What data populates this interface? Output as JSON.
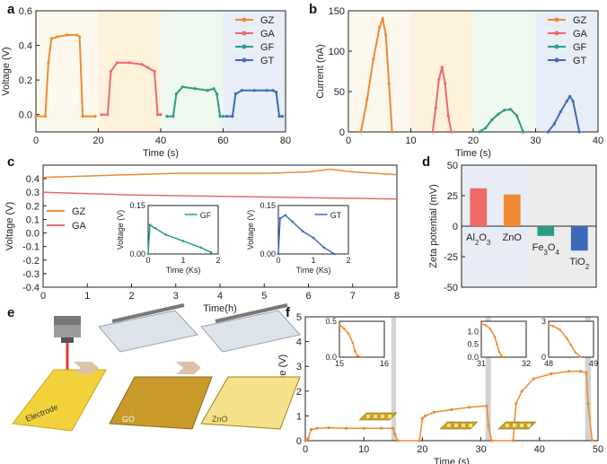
{
  "colors": {
    "orange": "#f08a30",
    "red": "#ea6b6b",
    "green": "#2c9c86",
    "blue": "#3c6ab9",
    "axis": "#222222"
  },
  "panel_labels": {
    "a": "a",
    "b": "b",
    "c": "c",
    "d": "d",
    "e": "e",
    "f": "f"
  },
  "chart_data": [
    {
      "id": "a",
      "type": "line",
      "xlabel": "Time (s)",
      "ylabel": "Voltage (V)",
      "xlim": [
        0,
        80
      ],
      "ylim": [
        -0.1,
        0.6
      ],
      "xticks": [
        0,
        20,
        40,
        60,
        80
      ],
      "yticks": [
        0.0,
        0.2,
        0.4,
        0.6
      ],
      "ytick_labels": [
        "0.0",
        "0.2",
        "0.4",
        "0.6"
      ],
      "legend": [
        "GZ",
        "GA",
        "GF",
        "GT"
      ],
      "background_bands": [
        {
          "from": 0,
          "to": 20,
          "color": "#fdf8ee"
        },
        {
          "from": 20,
          "to": 40,
          "color": "#fdf1dc"
        },
        {
          "from": 40,
          "to": 60,
          "color": "#eef8ee"
        },
        {
          "from": 60,
          "to": 80,
          "color": "#e8eef8"
        }
      ],
      "series": [
        {
          "name": "GZ",
          "color": "#f08a30",
          "x": [
            0,
            3,
            4,
            5,
            7,
            10,
            13,
            14,
            15,
            19
          ],
          "y": [
            -0.01,
            -0.01,
            0.3,
            0.44,
            0.45,
            0.46,
            0.46,
            0.45,
            -0.01,
            -0.01
          ]
        },
        {
          "name": "GA",
          "color": "#ea6b6b",
          "x": [
            21,
            23,
            24,
            26,
            30,
            34,
            36,
            38,
            39,
            40
          ],
          "y": [
            0.0,
            0.0,
            0.25,
            0.3,
            0.3,
            0.29,
            0.27,
            0.25,
            0.0,
            0.0
          ]
        },
        {
          "name": "GF",
          "color": "#2c9c86",
          "x": [
            42,
            44,
            45,
            47,
            51,
            55,
            57,
            58,
            59,
            60
          ],
          "y": [
            -0.01,
            -0.01,
            0.12,
            0.16,
            0.15,
            0.14,
            0.15,
            0.12,
            -0.01,
            -0.01
          ]
        },
        {
          "name": "GT",
          "color": "#3c6ab9",
          "x": [
            61,
            63,
            64,
            66,
            70,
            74,
            76,
            77,
            78,
            79
          ],
          "y": [
            -0.01,
            -0.01,
            0.12,
            0.14,
            0.14,
            0.14,
            0.14,
            0.13,
            -0.01,
            -0.01
          ]
        }
      ]
    },
    {
      "id": "b",
      "type": "line",
      "xlabel": "Time (s)",
      "ylabel": "Current (nA)",
      "xlim": [
        0,
        40
      ],
      "ylim": [
        0,
        150
      ],
      "xticks": [
        0,
        10,
        20,
        30,
        40
      ],
      "yticks": [
        0,
        50,
        100,
        150
      ],
      "legend": [
        "GZ",
        "GA",
        "GF",
        "GT"
      ],
      "background_bands": [
        {
          "from": 0,
          "to": 10,
          "color": "#fdf8ee"
        },
        {
          "from": 10,
          "to": 20,
          "color": "#fdf1dc"
        },
        {
          "from": 20,
          "to": 30,
          "color": "#eef8ee"
        },
        {
          "from": 30,
          "to": 40,
          "color": "#e8eef8"
        }
      ],
      "series": [
        {
          "name": "GZ",
          "color": "#f08a30",
          "x": [
            2,
            3,
            4,
            5,
            5.5,
            6,
            6.5,
            7
          ],
          "y": [
            0,
            40,
            90,
            130,
            140,
            120,
            60,
            0
          ]
        },
        {
          "name": "GA",
          "color": "#ea6b6b",
          "x": [
            13.5,
            14,
            14.5,
            15,
            15.5,
            16,
            16.5
          ],
          "y": [
            0,
            30,
            65,
            80,
            60,
            20,
            0
          ]
        },
        {
          "name": "GF",
          "color": "#2c9c86",
          "x": [
            21,
            22,
            23,
            24,
            25,
            26,
            27,
            28
          ],
          "y": [
            0,
            5,
            15,
            22,
            27,
            28,
            20,
            0
          ]
        },
        {
          "name": "GT",
          "color": "#3c6ab9",
          "x": [
            32,
            33,
            34,
            35,
            35.5,
            36,
            37
          ],
          "y": [
            0,
            10,
            25,
            38,
            44,
            38,
            0
          ]
        }
      ]
    },
    {
      "id": "c",
      "type": "line",
      "xlabel": "Time(h)",
      "ylabel": "Voltage (V)",
      "xlim": [
        0,
        8
      ],
      "ylim": [
        -0.4,
        0.5
      ],
      "xticks": [
        0,
        1,
        2,
        3,
        4,
        5,
        6,
        7,
        8
      ],
      "yticks": [
        -0.4,
        -0.3,
        -0.2,
        -0.1,
        0.0,
        0.1,
        0.2,
        0.3,
        0.4
      ],
      "ytick_labels": [
        "-0.4",
        "-0.3",
        "-0.2",
        "-0.1",
        "0.0",
        "0.1",
        "0.2",
        "0.3",
        "0.4"
      ],
      "legend": [
        "GZ",
        "GA"
      ],
      "series": [
        {
          "name": "GZ",
          "color": "#f08a30",
          "x": [
            0,
            1,
            2,
            3,
            4,
            5,
            6,
            6.5,
            7,
            7.5,
            8
          ],
          "y": [
            0.41,
            0.42,
            0.43,
            0.44,
            0.44,
            0.44,
            0.45,
            0.47,
            0.45,
            0.44,
            0.43
          ]
        },
        {
          "name": "GA",
          "color": "#ea6b6b",
          "x": [
            0,
            1,
            2,
            3,
            4,
            5,
            6,
            7,
            8
          ],
          "y": [
            0.3,
            0.29,
            0.28,
            0.275,
            0.27,
            0.265,
            0.26,
            0.255,
            0.25
          ]
        }
      ],
      "insets": [
        {
          "name": "GF",
          "color": "#2c9c86",
          "xlabel": "Time (Ks)",
          "ylabel": "Voltage (V)",
          "xlim": [
            0,
            2
          ],
          "ylim": [
            0,
            0.15
          ],
          "xticks": [
            0,
            1,
            2
          ],
          "yticks": [
            0.0,
            0.15
          ],
          "ytick_labels": [
            "0.00",
            "0.15"
          ],
          "x": [
            0,
            0.05,
            0.2,
            0.5,
            1.0,
            1.5,
            1.8
          ],
          "y": [
            0.0,
            0.09,
            0.08,
            0.06,
            0.04,
            0.02,
            0.005
          ]
        },
        {
          "name": "GT",
          "color": "#3c6ab9",
          "xlabel": "Time (Ks)",
          "ylabel": "Voltage (V)",
          "xlim": [
            0,
            2
          ],
          "ylim": [
            0,
            0.15
          ],
          "xticks": [
            0,
            1,
            2
          ],
          "yticks": [
            0.0,
            0.15
          ],
          "ytick_labels": [
            "0.00",
            "0.15"
          ],
          "x": [
            0,
            0.05,
            0.2,
            0.4,
            0.7,
            1.0,
            1.3,
            1.6
          ],
          "y": [
            0.0,
            0.11,
            0.12,
            0.1,
            0.07,
            0.05,
            0.02,
            0.0
          ]
        }
      ]
    },
    {
      "id": "d",
      "type": "bar",
      "ylabel": "Zeta potential (mV)",
      "ylim": [
        -50,
        50
      ],
      "yticks": [
        -50,
        -25,
        0,
        25,
        50
      ],
      "categories": [
        "Al2O3",
        "ZnO",
        "Fe3O4",
        "TiO2"
      ],
      "values": [
        31,
        26,
        -8,
        -20
      ],
      "colors": [
        "#f06a65",
        "#f08a30",
        "#2c9c86",
        "#3c6ab9"
      ]
    },
    {
      "id": "f",
      "type": "line",
      "xlabel": "Time (s)",
      "ylabel": "Voltage (V)",
      "xlim": [
        0,
        50
      ],
      "ylim": [
        0,
        5
      ],
      "xticks": [
        0,
        10,
        20,
        30,
        40,
        50
      ],
      "yticks": [
        0,
        1,
        2,
        3,
        4,
        5
      ],
      "gray_bands": [
        {
          "from": 14.7,
          "to": 15.5
        },
        {
          "from": 30.8,
          "to": 31.7
        },
        {
          "from": 47.8,
          "to": 48.8
        }
      ],
      "series": [
        {
          "name": "ZnO",
          "color": "#f08a30",
          "x": [
            0,
            0.5,
            1,
            2,
            4,
            7,
            10,
            13,
            15,
            15.3,
            15.8,
            19.5,
            20,
            20.5,
            22,
            25,
            28,
            31,
            31.3,
            31.8,
            35.5,
            36,
            37,
            39,
            42,
            45,
            47,
            48,
            48.3,
            49
          ],
          "y": [
            0,
            0.1,
            0.45,
            0.5,
            0.52,
            0.5,
            0.5,
            0.5,
            0.5,
            0.25,
            0,
            0,
            0.9,
            1.0,
            1.15,
            1.25,
            1.35,
            1.4,
            0.6,
            0,
            0,
            1.5,
            2.0,
            2.5,
            2.7,
            2.8,
            2.8,
            2.75,
            1.5,
            0
          ]
        }
      ],
      "insets": [
        {
          "xlim": [
            15,
            16
          ],
          "ylim": [
            0,
            0.5
          ],
          "xticks": [
            15,
            16
          ],
          "yticks": [
            0.0,
            0.5
          ],
          "ytick_labels": [
            "0.0",
            "0.5"
          ],
          "x": [
            15,
            15.1,
            15.2,
            15.3,
            15.35,
            15.4,
            15.5
          ],
          "y": [
            0.45,
            0.4,
            0.33,
            0.2,
            0.08,
            0.02,
            0.0
          ]
        },
        {
          "xlim": [
            31,
            32
          ],
          "ylim": [
            0,
            1.4
          ],
          "xticks": [
            31,
            32
          ],
          "yticks": [
            0.0,
            0.5,
            1.0
          ],
          "ytick_labels": [
            "0.0",
            "0.5",
            "1.0"
          ],
          "x": [
            31,
            31.1,
            31.2,
            31.3,
            31.35,
            31.4,
            31.45,
            31.5
          ],
          "y": [
            1.3,
            1.25,
            1.1,
            0.8,
            0.5,
            0.2,
            0.05,
            0.0
          ]
        },
        {
          "xlim": [
            48,
            49
          ],
          "ylim": [
            0,
            3
          ],
          "xticks": [
            48,
            49
          ],
          "yticks": [
            0,
            3
          ],
          "ytick_labels": [
            "0",
            "3"
          ],
          "x": [
            48,
            48.1,
            48.25,
            48.4,
            48.5,
            48.6,
            48.7
          ],
          "y": [
            2.7,
            2.6,
            2.3,
            1.6,
            1.0,
            0.4,
            0.05
          ]
        }
      ]
    }
  ],
  "labels_e": {
    "electrode": "Electrode",
    "go": "GO",
    "zno": "ZnO"
  }
}
